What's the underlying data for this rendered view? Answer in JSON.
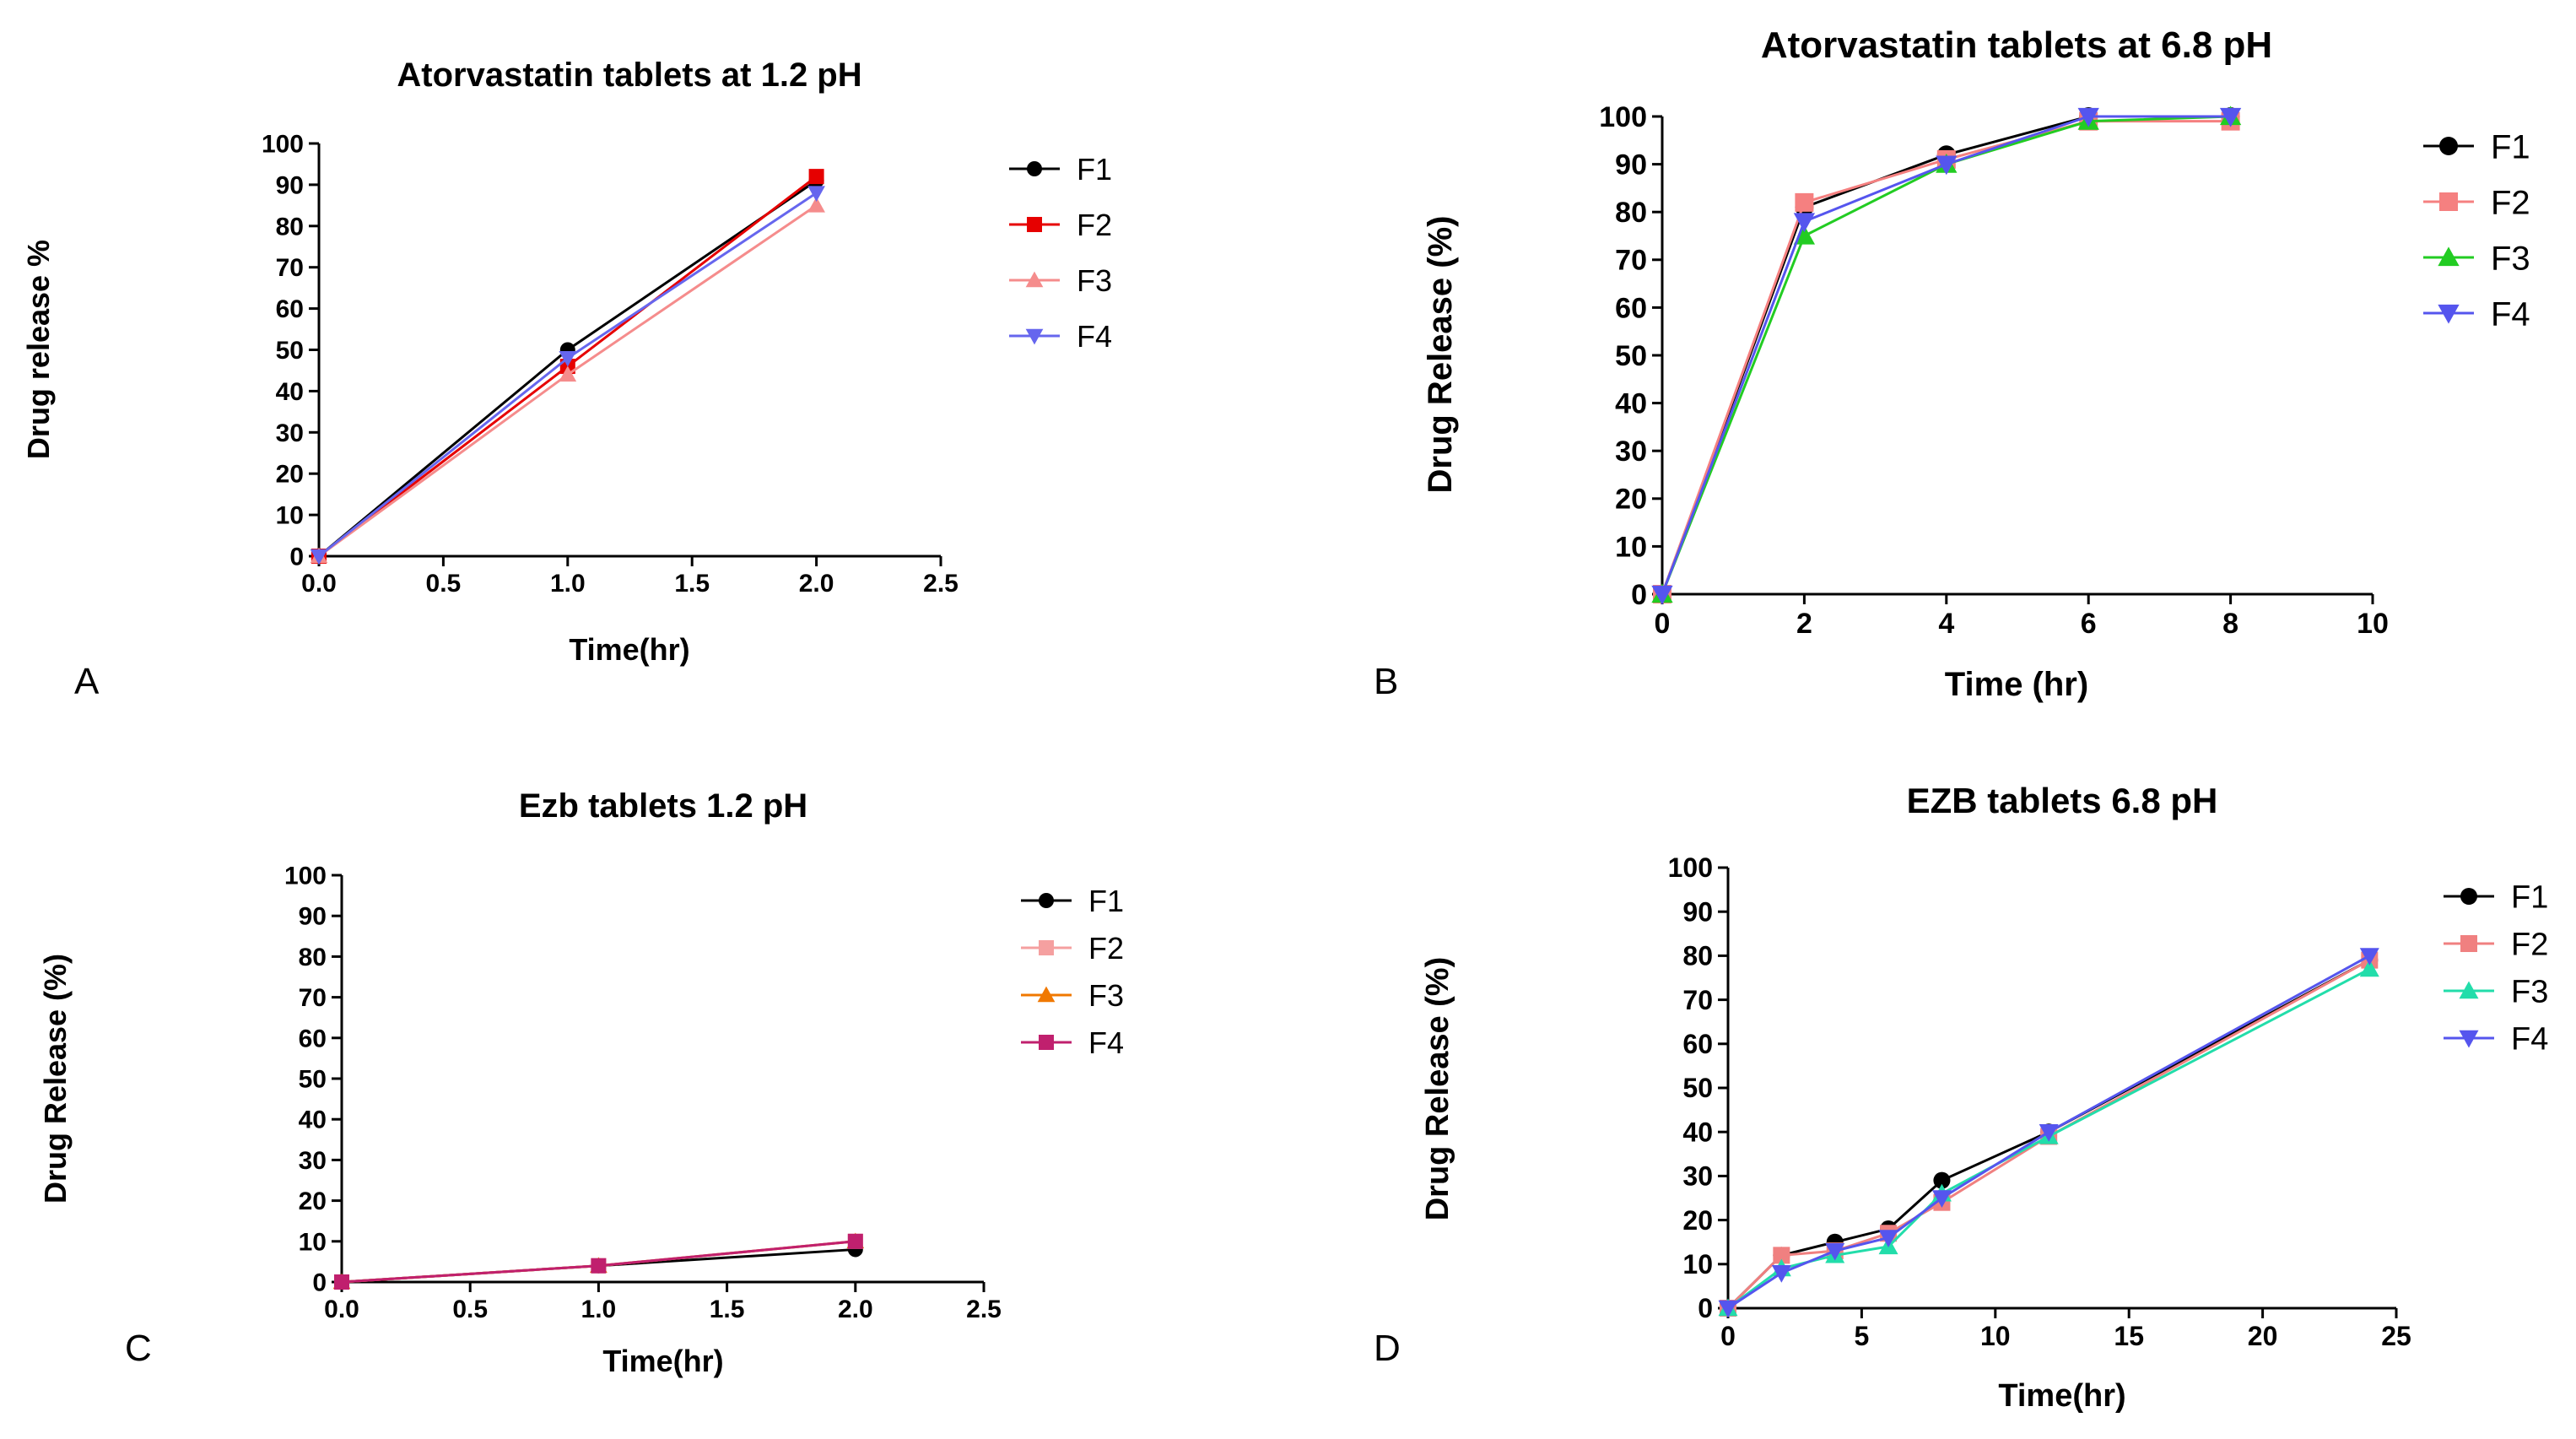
{
  "chart_data": [
    {
      "id": "A",
      "panel_letter": "A",
      "type": "line",
      "title": "Atorvastatin tablets at 1.2 pH",
      "xlabel": "Time(hr)",
      "ylabel": "Drug release %",
      "xlim": [
        0,
        2.5
      ],
      "ylim": [
        0,
        100
      ],
      "xticks": [
        0,
        0.5,
        1,
        1.5,
        2,
        2.5
      ],
      "yticks": [
        0,
        10,
        20,
        30,
        40,
        50,
        60,
        70,
        80,
        90,
        100
      ],
      "xtick_labels": [
        "0.0",
        "0.5",
        "1.0",
        "1.5",
        "2.0",
        "2.5"
      ],
      "ytick_labels": [
        "0",
        "10",
        "20",
        "30",
        "40",
        "50",
        "60",
        "70",
        "80",
        "90",
        "100"
      ],
      "legend_position": "right",
      "series": [
        {
          "name": "F1",
          "color": "#000000",
          "marker": "circle",
          "x": [
            0,
            1,
            2
          ],
          "y": [
            0,
            50,
            91
          ]
        },
        {
          "name": "F2",
          "color": "#e60000",
          "marker": "square",
          "x": [
            0,
            1,
            2
          ],
          "y": [
            0,
            46,
            92
          ]
        },
        {
          "name": "F3",
          "color": "#f58c8c",
          "marker": "triangle-up",
          "x": [
            0,
            1,
            2
          ],
          "y": [
            0,
            44,
            85
          ]
        },
        {
          "name": "F4",
          "color": "#6666ee",
          "marker": "triangle-down",
          "x": [
            0,
            1,
            2
          ],
          "y": [
            0,
            48,
            88
          ]
        }
      ]
    },
    {
      "id": "B",
      "panel_letter": "B",
      "type": "line",
      "title": "Atorvastatin tablets at 6.8 pH",
      "xlabel": "Time (hr)",
      "ylabel": "Drug Release (%)",
      "xlim": [
        0,
        10
      ],
      "ylim": [
        0,
        100
      ],
      "xticks": [
        0,
        2,
        4,
        6,
        8,
        10
      ],
      "yticks": [
        0,
        10,
        20,
        30,
        40,
        50,
        60,
        70,
        80,
        90,
        100
      ],
      "xtick_labels": [
        "0",
        "2",
        "4",
        "6",
        "8",
        "10"
      ],
      "ytick_labels": [
        "0",
        "10",
        "20",
        "30",
        "40",
        "50",
        "60",
        "70",
        "80",
        "90",
        "100"
      ],
      "legend_position": "right",
      "series": [
        {
          "name": "F1",
          "color": "#000000",
          "marker": "circle",
          "x": [
            0,
            2,
            4,
            6,
            8
          ],
          "y": [
            0,
            81,
            92,
            100,
            100
          ]
        },
        {
          "name": "F2",
          "color": "#f58080",
          "marker": "square",
          "x": [
            0,
            2,
            4,
            6,
            8
          ],
          "y": [
            0,
            82,
            91,
            99,
            99
          ]
        },
        {
          "name": "F3",
          "color": "#22cc22",
          "marker": "triangle-up",
          "x": [
            0,
            2,
            4,
            6,
            8
          ],
          "y": [
            0,
            75,
            90,
            99,
            100
          ]
        },
        {
          "name": "F4",
          "color": "#5555ee",
          "marker": "triangle-down",
          "x": [
            0,
            2,
            4,
            6,
            8
          ],
          "y": [
            0,
            78,
            90,
            100,
            100
          ]
        }
      ]
    },
    {
      "id": "C",
      "panel_letter": "C",
      "type": "line",
      "title": "Ezb tablets 1.2 pH",
      "xlabel": "Time(hr)",
      "ylabel": "Drug Release (%)",
      "xlim": [
        0,
        2.5
      ],
      "ylim": [
        0,
        100
      ],
      "xticks": [
        0,
        0.5,
        1,
        1.5,
        2,
        2.5
      ],
      "yticks": [
        0,
        10,
        20,
        30,
        40,
        50,
        60,
        70,
        80,
        90,
        100
      ],
      "xtick_labels": [
        "0.0",
        "0.5",
        "1.0",
        "1.5",
        "2.0",
        "2.5"
      ],
      "ytick_labels": [
        "0",
        "10",
        "20",
        "30",
        "40",
        "50",
        "60",
        "70",
        "80",
        "90",
        "100"
      ],
      "legend_position": "right",
      "series": [
        {
          "name": "F1",
          "color": "#000000",
          "marker": "circle",
          "x": [
            0,
            1,
            2
          ],
          "y": [
            0,
            4,
            8
          ]
        },
        {
          "name": "F2",
          "color": "#f5a0a0",
          "marker": "square",
          "x": [
            0,
            1,
            2
          ],
          "y": [
            0,
            4,
            10
          ]
        },
        {
          "name": "F3",
          "color": "#f07800",
          "marker": "triangle-up",
          "x": [
            0,
            1,
            2
          ],
          "y": [
            0,
            4,
            10
          ]
        },
        {
          "name": "F4",
          "color": "#c0206e",
          "marker": "square",
          "x": [
            0,
            1,
            2
          ],
          "y": [
            0,
            4,
            10
          ]
        }
      ]
    },
    {
      "id": "D",
      "panel_letter": "D",
      "type": "line",
      "title": "EZB tablets 6.8 pH",
      "xlabel": "Time(hr)",
      "ylabel": "Drug Release (%)",
      "xlim": [
        0,
        25
      ],
      "ylim": [
        0,
        100
      ],
      "xticks": [
        0,
        5,
        10,
        15,
        20,
        25
      ],
      "yticks": [
        0,
        10,
        20,
        30,
        40,
        50,
        60,
        70,
        80,
        90,
        100
      ],
      "xtick_labels": [
        "0",
        "5",
        "10",
        "15",
        "20",
        "25"
      ],
      "ytick_labels": [
        "0",
        "10",
        "20",
        "30",
        "40",
        "50",
        "60",
        "70",
        "80",
        "90",
        "100"
      ],
      "legend_position": "right",
      "series": [
        {
          "name": "F1",
          "color": "#000000",
          "marker": "circle",
          "x": [
            0,
            2,
            4,
            6,
            8,
            12,
            24
          ],
          "y": [
            0,
            12,
            15,
            18,
            29,
            40,
            79
          ]
        },
        {
          "name": "F2",
          "color": "#f08080",
          "marker": "square",
          "x": [
            0,
            2,
            4,
            6,
            8,
            12,
            24
          ],
          "y": [
            0,
            12,
            13,
            17,
            24,
            39,
            79
          ]
        },
        {
          "name": "F3",
          "color": "#22ddaa",
          "marker": "triangle-up",
          "x": [
            0,
            2,
            4,
            6,
            8,
            12,
            24
          ],
          "y": [
            0,
            9,
            12,
            14,
            26,
            39,
            77
          ]
        },
        {
          "name": "F4",
          "color": "#5555ee",
          "marker": "triangle-down",
          "x": [
            0,
            2,
            4,
            6,
            8,
            12,
            24
          ],
          "y": [
            0,
            8,
            13,
            16,
            25,
            40,
            80
          ]
        }
      ]
    }
  ]
}
